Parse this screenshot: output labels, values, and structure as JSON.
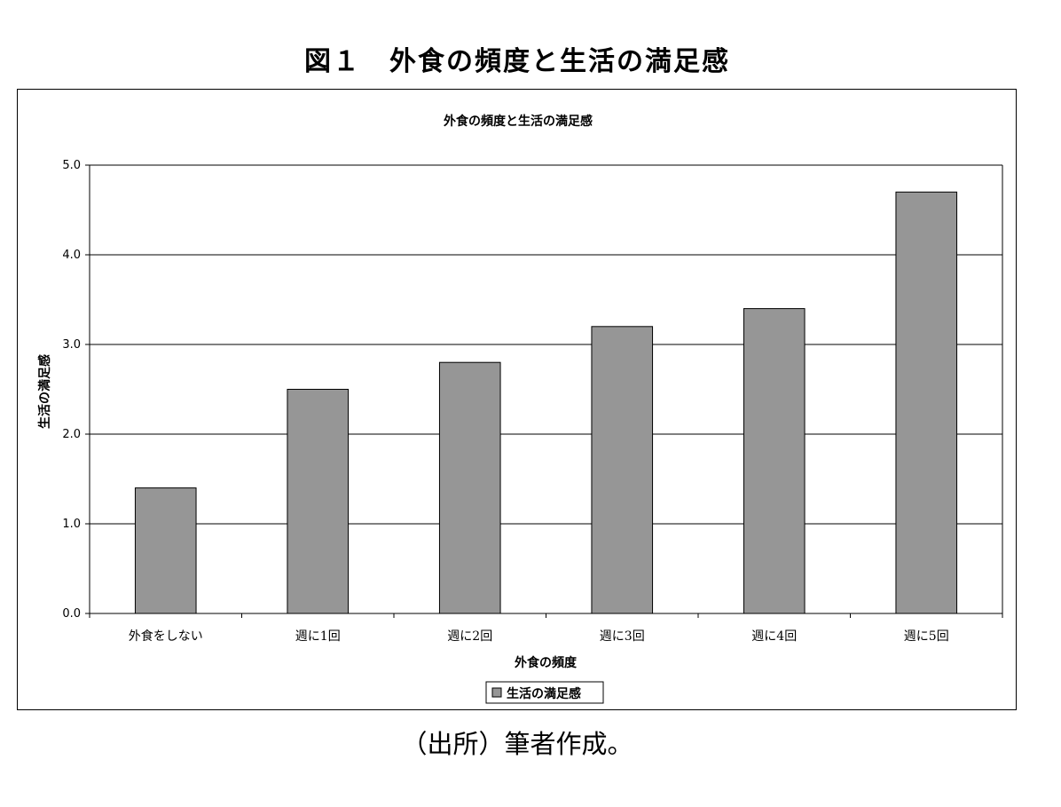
{
  "figure_title": "図１　外食の頻度と生活の満足感",
  "source_note": "（出所）筆者作成。",
  "colors": {
    "bar": "#969696",
    "grid": "#000000",
    "axis": "#000000"
  },
  "chart_data": {
    "type": "bar",
    "title": "外食の頻度と生活の満足感",
    "xlabel": "外食の頻度",
    "ylabel": "生活の満足感",
    "categories": [
      "外食をしない",
      "週に1回",
      "週に2回",
      "週に3回",
      "週に4回",
      "週に5回"
    ],
    "series": [
      {
        "name": "生活の満足感",
        "values": [
          1.4,
          2.5,
          2.8,
          3.2,
          3.4,
          4.7
        ]
      }
    ],
    "ylim": [
      0,
      5
    ],
    "yticks": [
      "0.0",
      "1.0",
      "2.0",
      "3.0",
      "4.0",
      "5.0"
    ],
    "grid": true,
    "legend": "bottom-center"
  }
}
